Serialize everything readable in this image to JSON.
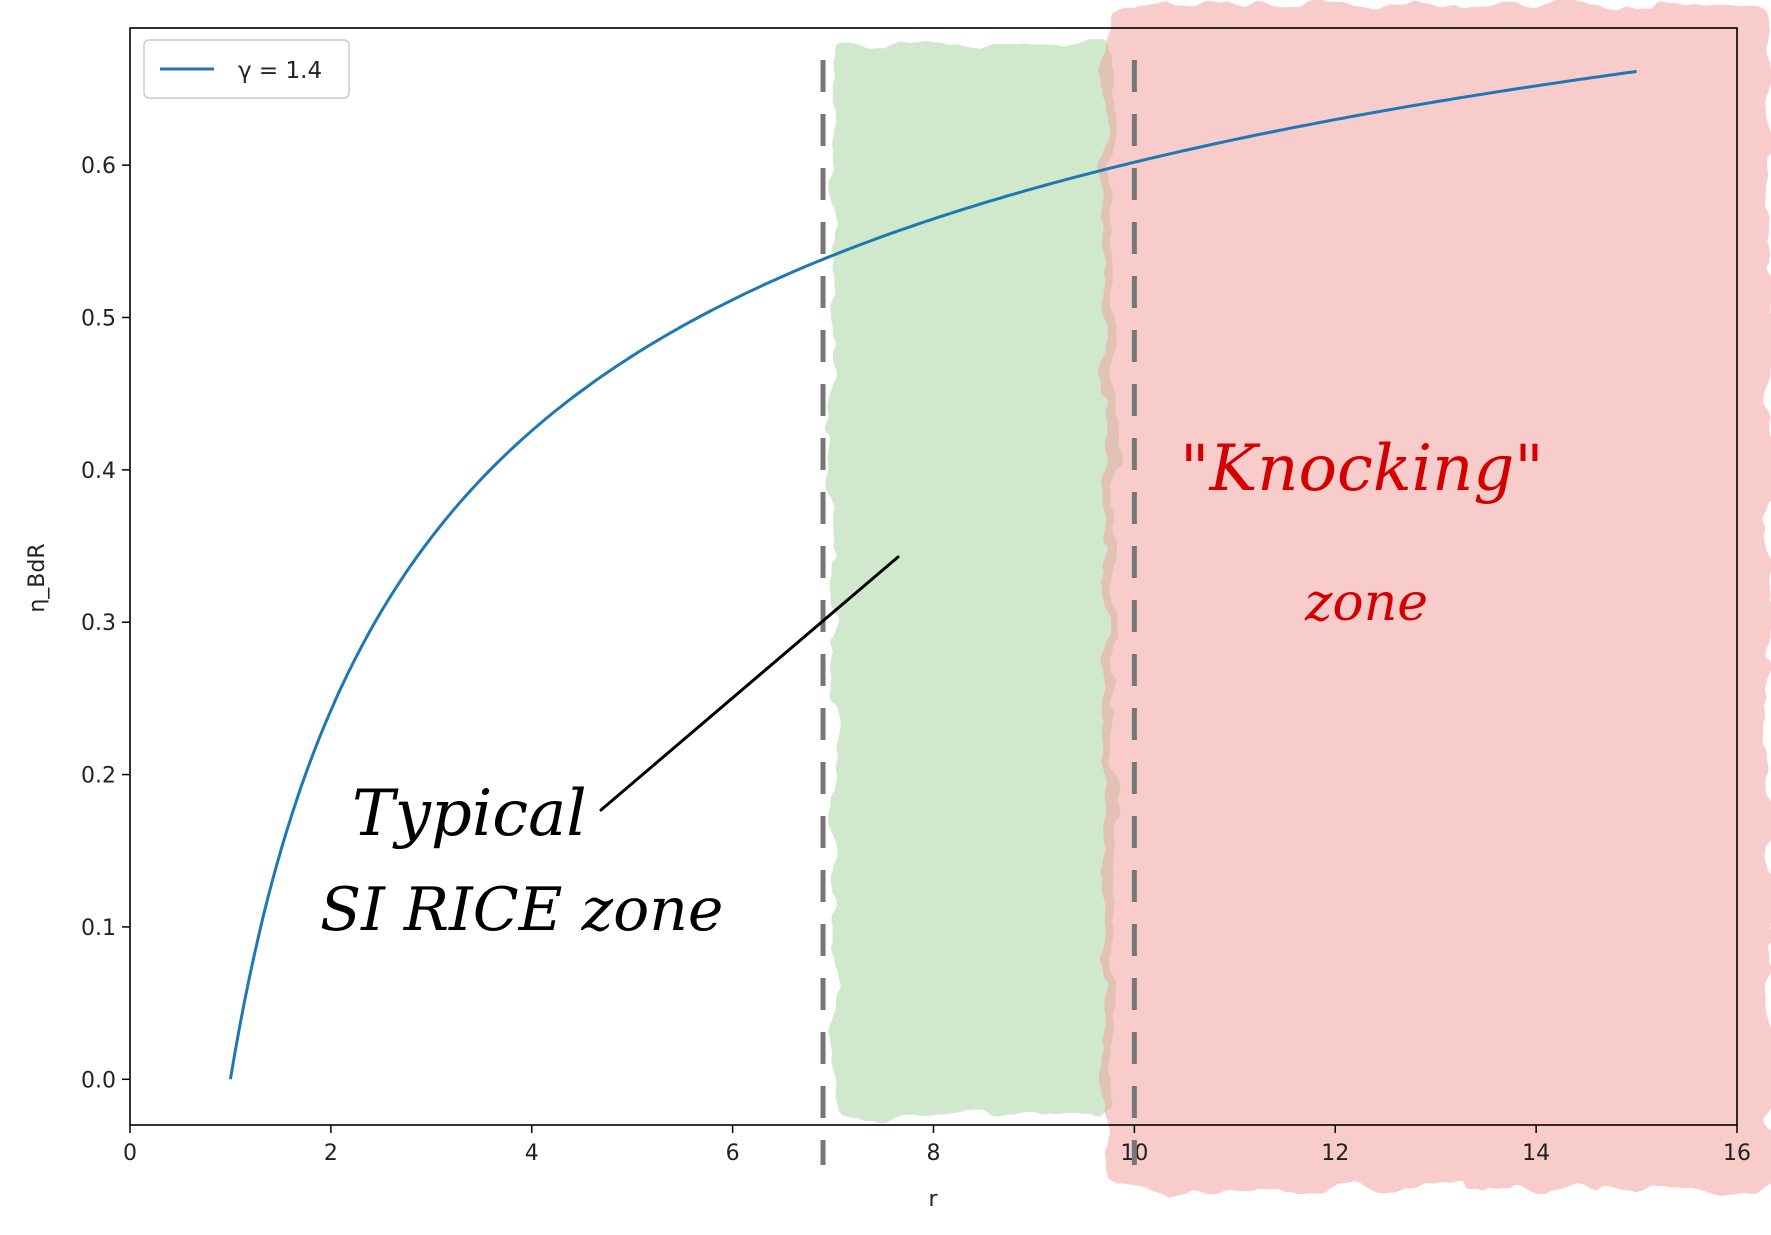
{
  "chart_data": {
    "type": "line",
    "xlabel": "r",
    "ylabel": "η_BdR",
    "xlim": [
      0,
      16
    ],
    "ylim": [
      -0.03,
      0.69
    ],
    "x_ticks": [
      "0",
      "2",
      "4",
      "6",
      "8",
      "10",
      "12",
      "14",
      "16"
    ],
    "y_ticks": [
      "0.0",
      "0.1",
      "0.2",
      "0.3",
      "0.4",
      "0.5",
      "0.6"
    ],
    "legend": {
      "placement": "top-left",
      "entry": "γ = 1.4"
    },
    "series": [
      {
        "name": "γ = 1.4",
        "color": "#1f77b4",
        "gamma": 1.4,
        "x": [
          1,
          1.5,
          2,
          2.5,
          3,
          4,
          5,
          6,
          6.9,
          8,
          9,
          10,
          11,
          12,
          13,
          14,
          15
        ],
        "y": [
          0.0,
          0.15,
          0.242,
          0.307,
          0.356,
          0.426,
          0.475,
          0.512,
          0.538,
          0.565,
          0.585,
          0.602,
          0.617,
          0.63,
          0.641,
          0.652,
          0.661
        ]
      }
    ],
    "vertical_lines": [
      {
        "x": 6.9,
        "style": "dashed",
        "color": "#777777"
      },
      {
        "x": 10,
        "style": "dashed",
        "color": "#777777"
      }
    ],
    "shaded_zones": [
      {
        "label": "Typical SI RICE zone",
        "color": "#a9d6a0"
      },
      {
        "label": "\"Knocking\" zone",
        "color": "#f0a3a0"
      }
    ],
    "annotations": [
      {
        "lines": [
          "Typical",
          "SI RICE zone"
        ],
        "color": "#000000"
      },
      {
        "lines": [
          "\"Knocking\"",
          "zone"
        ],
        "color": "#d40000"
      }
    ]
  }
}
